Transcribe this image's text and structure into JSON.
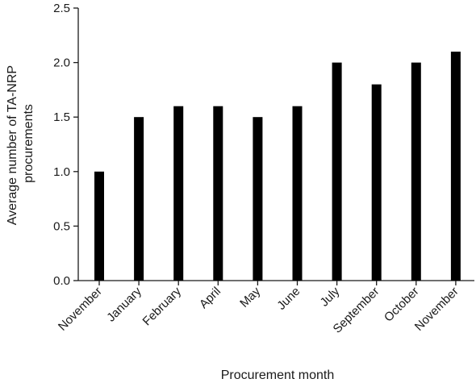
{
  "chart_data": {
    "type": "bar",
    "categories": [
      "November",
      "January",
      "February",
      "April",
      "May",
      "June",
      "July",
      "September",
      "October",
      "November"
    ],
    "values": [
      1.0,
      1.5,
      1.6,
      1.6,
      1.5,
      1.6,
      2.0,
      1.8,
      2.0,
      2.1
    ],
    "xlabel": "Procurement month",
    "ylabel_lines": [
      "Average number of TA-NRP",
      "procurements"
    ],
    "ylim": [
      0,
      2.5
    ],
    "yticks": [
      "0.0",
      "0.5",
      "1.0",
      "1.5",
      "2.0",
      "2.5"
    ],
    "grid": false,
    "bar_color": "#000000",
    "axis_color": "#1a1a1a"
  }
}
